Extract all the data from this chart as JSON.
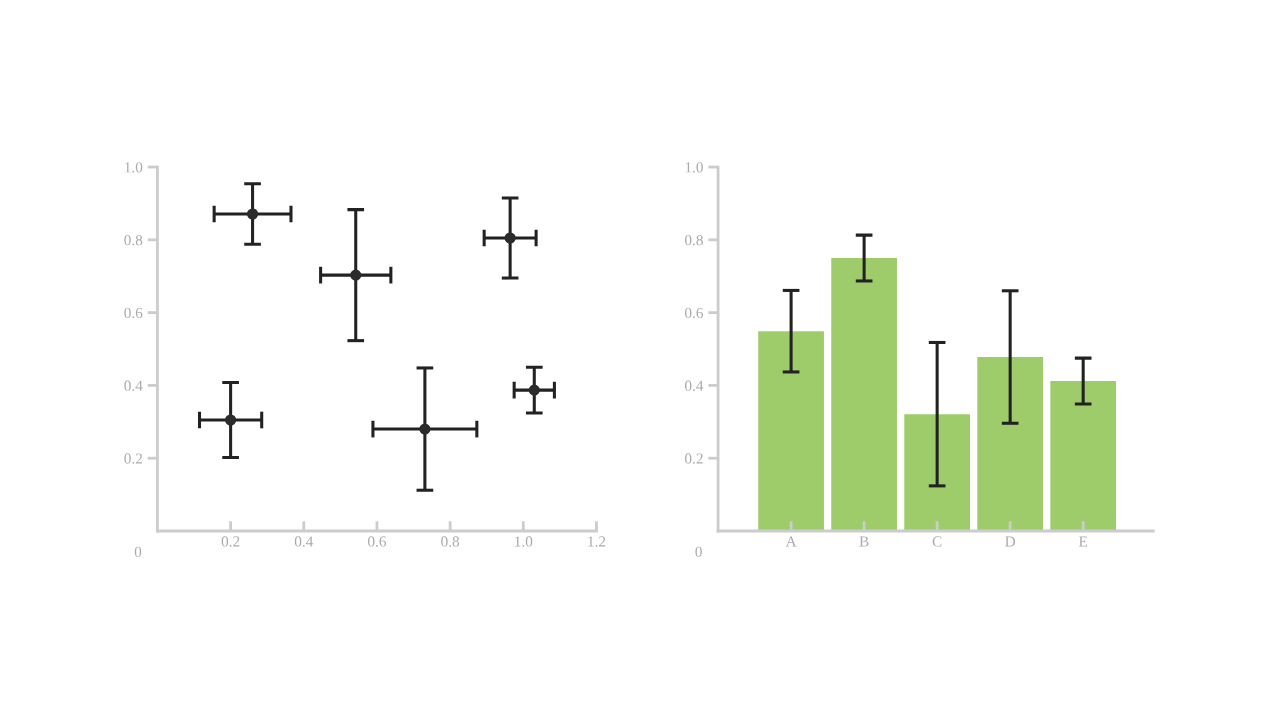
{
  "chart_data": [
    {
      "type": "scatter",
      "x": [
        0.26,
        0.542,
        0.964,
        0.2,
        0.731,
        1.03
      ],
      "values": [
        0.871,
        0.703,
        0.805,
        0.305,
        0.28,
        0.387
      ],
      "errors": [
        0.083,
        0.18,
        0.11,
        0.103,
        0.168,
        0.063
      ],
      "xerrors": [
        0.105,
        0.096,
        0.071,
        0.085,
        0.142,
        0.055
      ],
      "color": "#2b2b2b",
      "marker": "circle",
      "xlim": [
        0,
        1.2
      ],
      "ylim": [
        0,
        1.0
      ],
      "xticks": [
        0.2,
        0.4,
        0.6,
        0.8,
        {
          "value": 1,
          "label": "1.0"
        },
        1.2
      ],
      "yticks": [
        0.2,
        0.4,
        0.6,
        0.8,
        {
          "value": 1,
          "label": "1.0"
        }
      ],
      "annotations": [
        "0"
      ],
      "grid": false
    },
    {
      "type": "bar",
      "categories": [
        "A",
        "B",
        "C",
        "D",
        "E"
      ],
      "values": [
        0.549,
        0.75,
        0.321,
        0.478,
        0.412
      ],
      "errors": [
        0.112,
        0.063,
        0.197,
        0.182,
        0.063
      ],
      "color": "#9fcc6b",
      "ylim": [
        0,
        1.0
      ],
      "yticks": [
        0.2,
        0.4,
        0.6,
        0.8,
        {
          "value": 1,
          "label": "1.0"
        }
      ],
      "annotations": [
        "0"
      ],
      "grid": false
    }
  ]
}
